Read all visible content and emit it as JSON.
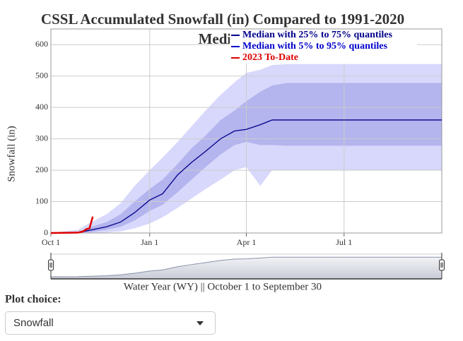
{
  "chart_data": {
    "type": "line",
    "title": "CSSL Accumulated Snowfall (in) Compared to 1991-2020",
    "subtitle": "Median",
    "ylabel": "Snowfall (in)",
    "xlabel": "Water Year (WY) || October 1 to September 30",
    "xlim": [
      0,
      364
    ],
    "xticks": [
      {
        "value": 0,
        "label": "Oct 1"
      },
      {
        "value": 92,
        "label": "Jan 1"
      },
      {
        "value": 182,
        "label": "Apr 1"
      },
      {
        "value": 273,
        "label": "Jul 1"
      }
    ],
    "ylim": [
      0,
      650
    ],
    "yticks": [
      0,
      100,
      200,
      300,
      400,
      500,
      600
    ],
    "grid": true,
    "x": [
      0,
      25,
      38,
      52,
      65,
      78,
      92,
      104,
      118,
      131,
      144,
      158,
      171,
      182,
      195,
      206,
      220,
      364
    ],
    "series": [
      {
        "name": "Median with 25% to 75% quantiles",
        "color": "#00008b",
        "values": [
          0,
          1,
          10,
          20,
          35,
          65,
          105,
          125,
          185,
          225,
          260,
          300,
          325,
          330,
          345,
          360,
          360,
          360
        ],
        "lower": [
          0,
          0,
          3,
          10,
          20,
          40,
          70,
          90,
          130,
          170,
          210,
          250,
          280,
          290,
          280,
          280,
          278,
          278
        ],
        "upper": [
          0,
          3,
          20,
          35,
          60,
          100,
          140,
          170,
          220,
          270,
          310,
          360,
          390,
          420,
          450,
          470,
          478,
          478
        ],
        "band_color": "#b4b4ee"
      },
      {
        "name": "Median with 5% to 95% quantiles",
        "color": "#0000cd",
        "lower": [
          0,
          0,
          0,
          2,
          5,
          15,
          30,
          50,
          80,
          110,
          140,
          170,
          200,
          210,
          150,
          200,
          200,
          200
        ],
        "upper": [
          0,
          10,
          35,
          60,
          95,
          150,
          200,
          240,
          290,
          340,
          390,
          440,
          480,
          510,
          520,
          535,
          538,
          538
        ],
        "band_color": "#d8d8fc"
      },
      {
        "name": "2023 To-Date",
        "color": "#dd0000",
        "x": [
          0,
          25,
          30,
          33,
          36,
          37,
          39
        ],
        "values": [
          0,
          1,
          5,
          12,
          15,
          28,
          52
        ]
      }
    ]
  },
  "ui": {
    "plot_choice_label": "Plot choice:",
    "selected": "Snowfall"
  }
}
